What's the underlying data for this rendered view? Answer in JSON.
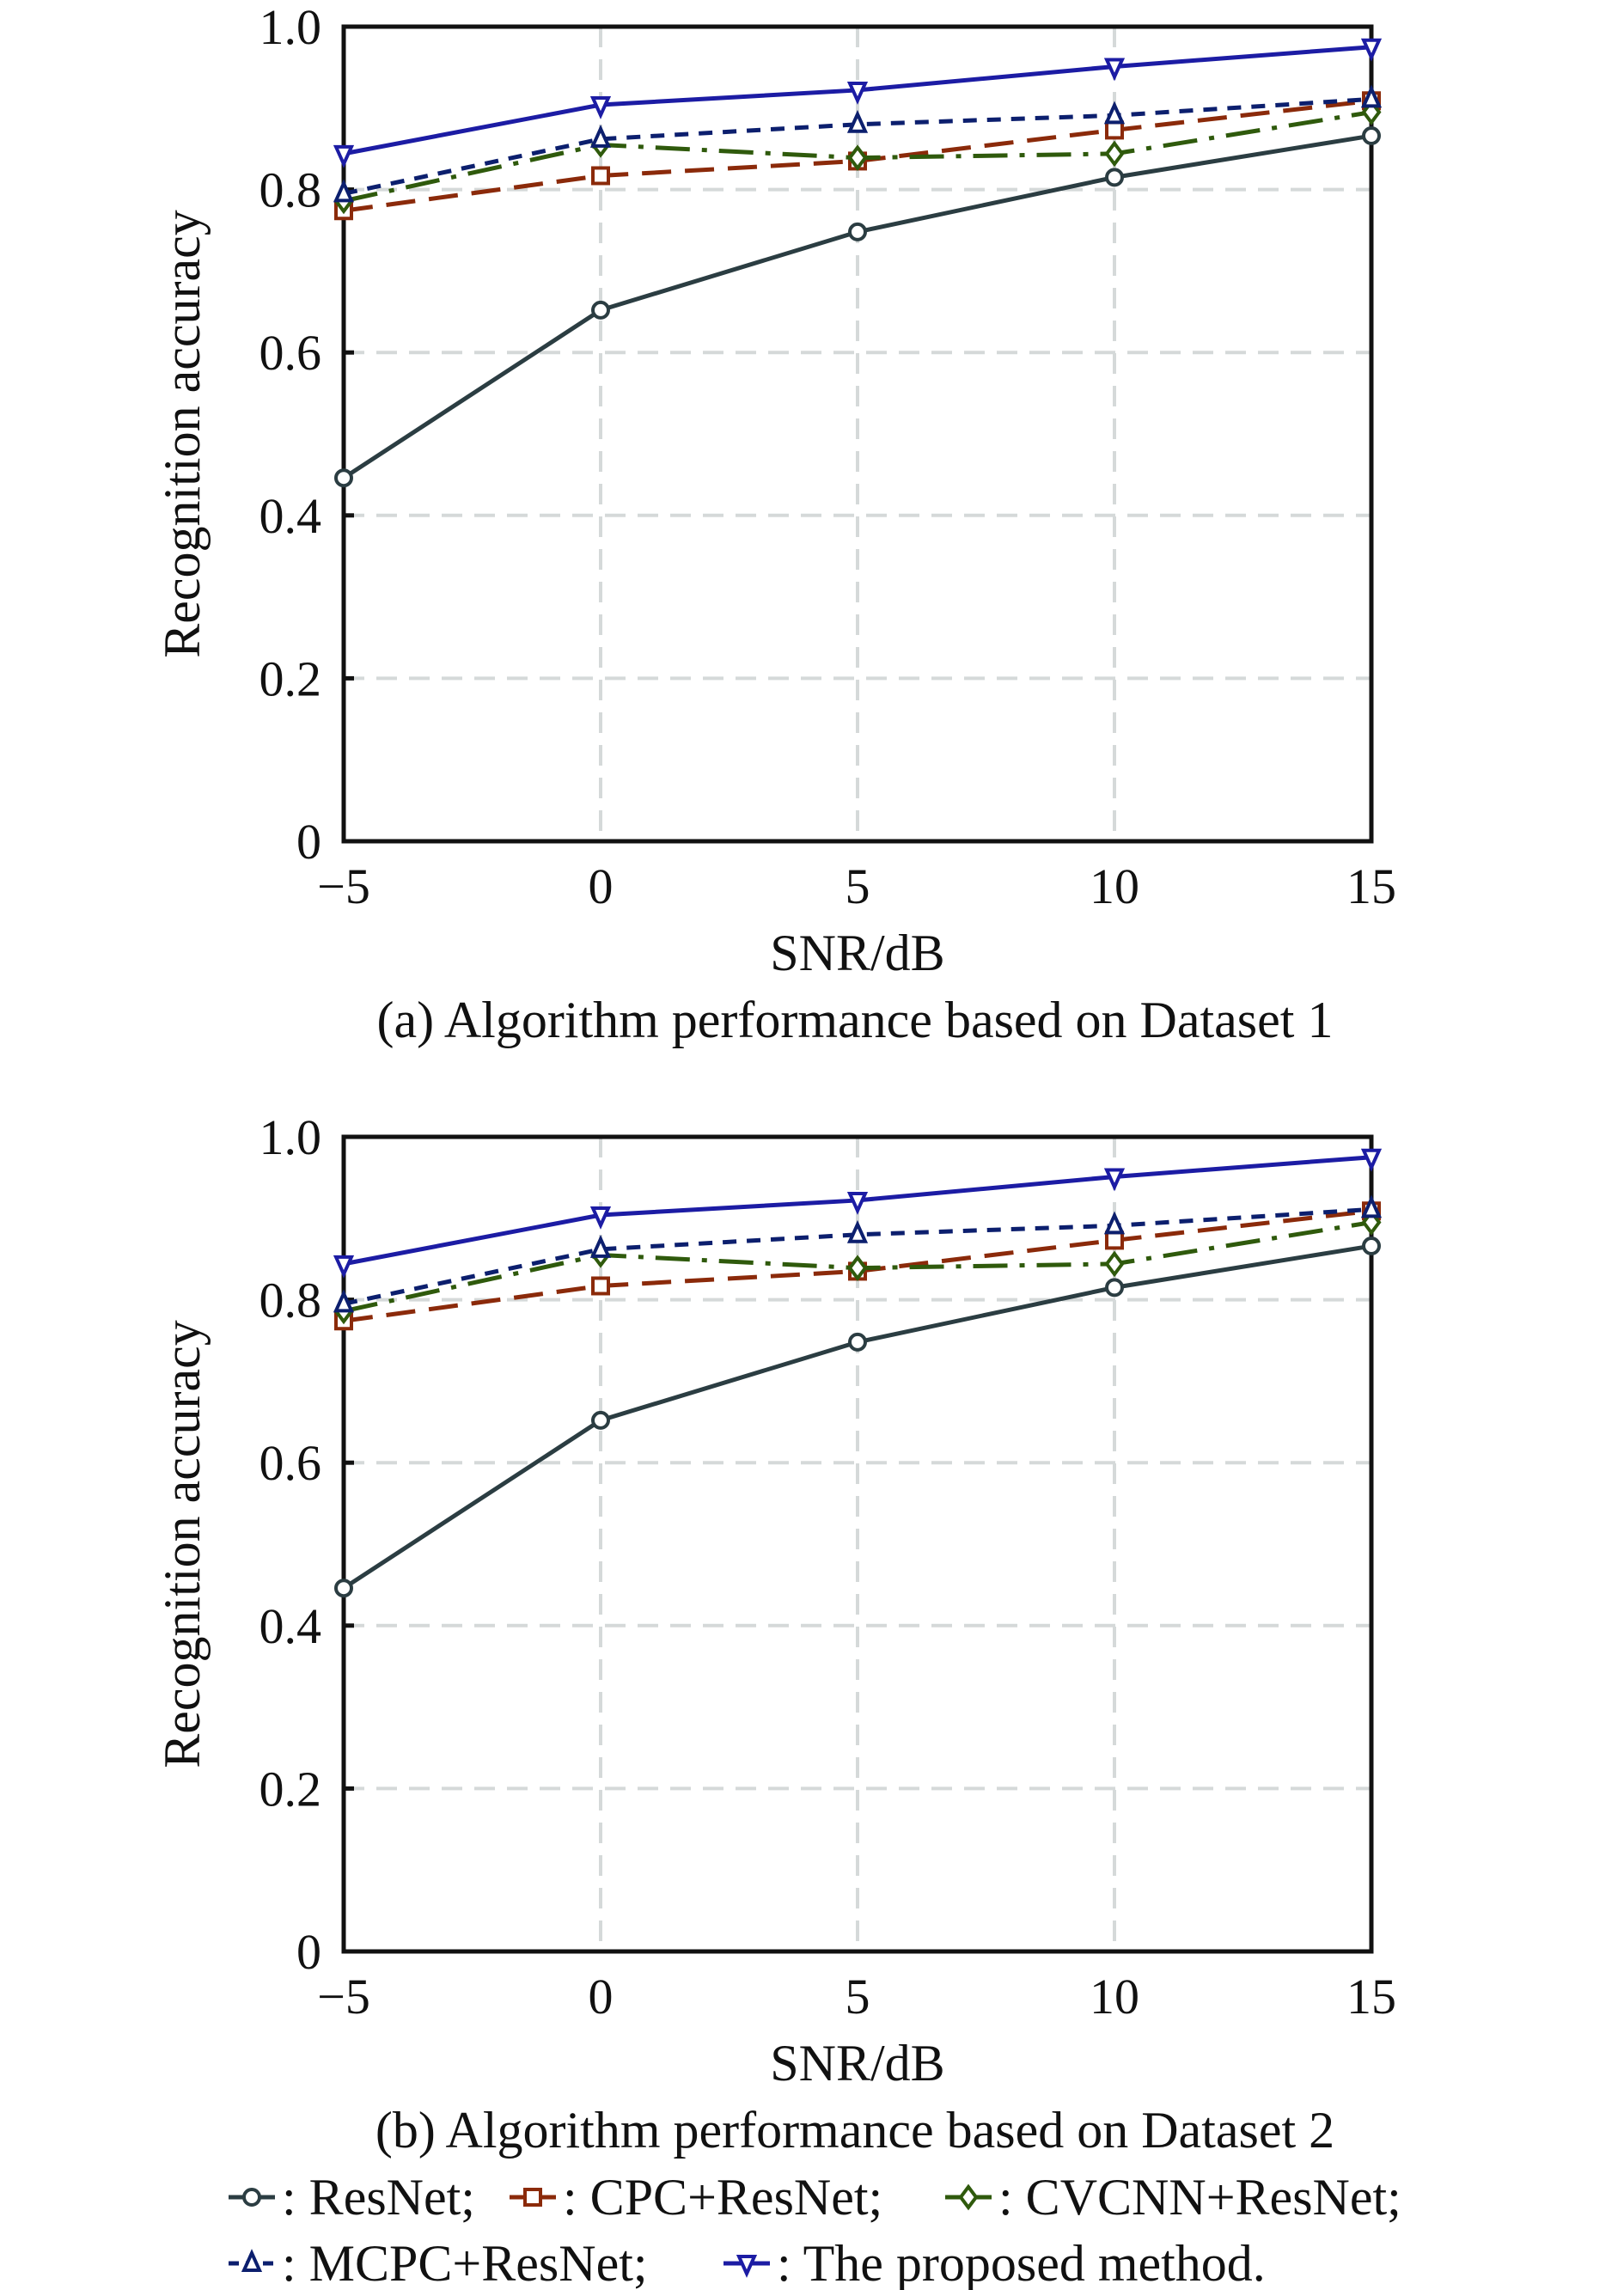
{
  "chart_data": [
    {
      "type": "line",
      "title": "(a) Algorithm performance based on Dataset 1",
      "xlabel": "SNR/dB",
      "ylabel": "Recognition accuracy",
      "x": [
        -5,
        0,
        5,
        10,
        15
      ],
      "xticks": [
        "−5",
        "0",
        "5",
        "10",
        "15"
      ],
      "yticks": [
        "0",
        "0.2",
        "0.4",
        "0.6",
        "0.8",
        "1.0"
      ],
      "xlim": [
        -5,
        15
      ],
      "ylim": [
        0,
        1.0
      ],
      "grid": true,
      "series": [
        {
          "name": "ResNet",
          "values": [
            0.446,
            0.652,
            0.748,
            0.815,
            0.866
          ]
        },
        {
          "name": "CPC+ResNet",
          "values": [
            0.774,
            0.817,
            0.835,
            0.873,
            0.909
          ]
        },
        {
          "name": "CVCNN+ResNet",
          "values": [
            0.786,
            0.855,
            0.839,
            0.844,
            0.895
          ]
        },
        {
          "name": "MCPC+ResNet",
          "values": [
            0.795,
            0.862,
            0.88,
            0.891,
            0.911
          ]
        },
        {
          "name": "The proposed method",
          "values": [
            0.844,
            0.904,
            0.922,
            0.951,
            0.975
          ]
        }
      ]
    },
    {
      "type": "line",
      "title": "(b) Algorithm performance based on Dataset 2",
      "xlabel": "SNR/dB",
      "ylabel": "Recognition accuracy",
      "x": [
        -5,
        0,
        5,
        10,
        15
      ],
      "xticks": [
        "−5",
        "0",
        "5",
        "10",
        "15"
      ],
      "yticks": [
        "0",
        "0.2",
        "0.4",
        "0.6",
        "0.8",
        "1.0"
      ],
      "xlim": [
        -5,
        15
      ],
      "ylim": [
        0,
        1.0
      ],
      "grid": true,
      "series": [
        {
          "name": "ResNet",
          "values": [
            0.446,
            0.652,
            0.748,
            0.815,
            0.866
          ]
        },
        {
          "name": "CPC+ResNet",
          "values": [
            0.774,
            0.817,
            0.835,
            0.873,
            0.909
          ]
        },
        {
          "name": "CVCNN+ResNet",
          "values": [
            0.786,
            0.855,
            0.839,
            0.844,
            0.895
          ]
        },
        {
          "name": "MCPC+ResNet",
          "values": [
            0.795,
            0.862,
            0.88,
            0.891,
            0.911
          ]
        },
        {
          "name": "The proposed method",
          "values": [
            0.844,
            0.904,
            0.922,
            0.951,
            0.975
          ]
        }
      ]
    }
  ],
  "legend": {
    "placement": "bottom",
    "items": [
      {
        "label": ": ResNet;",
        "color": "#2b3d42",
        "marker": "circle"
      },
      {
        "label": ": CPC+ResNet;",
        "color": "#8b2a0a",
        "marker": "square"
      },
      {
        "label": ": CVCNN+ResNet;",
        "color": "#2f5a0c",
        "marker": "diamond"
      },
      {
        "label": ": MCPC+ResNet;",
        "color": "#0c1f6e",
        "marker": "triangle-up"
      },
      {
        "label": ": The proposed method.",
        "color": "#1c1ca4",
        "marker": "triangle-down"
      }
    ]
  }
}
